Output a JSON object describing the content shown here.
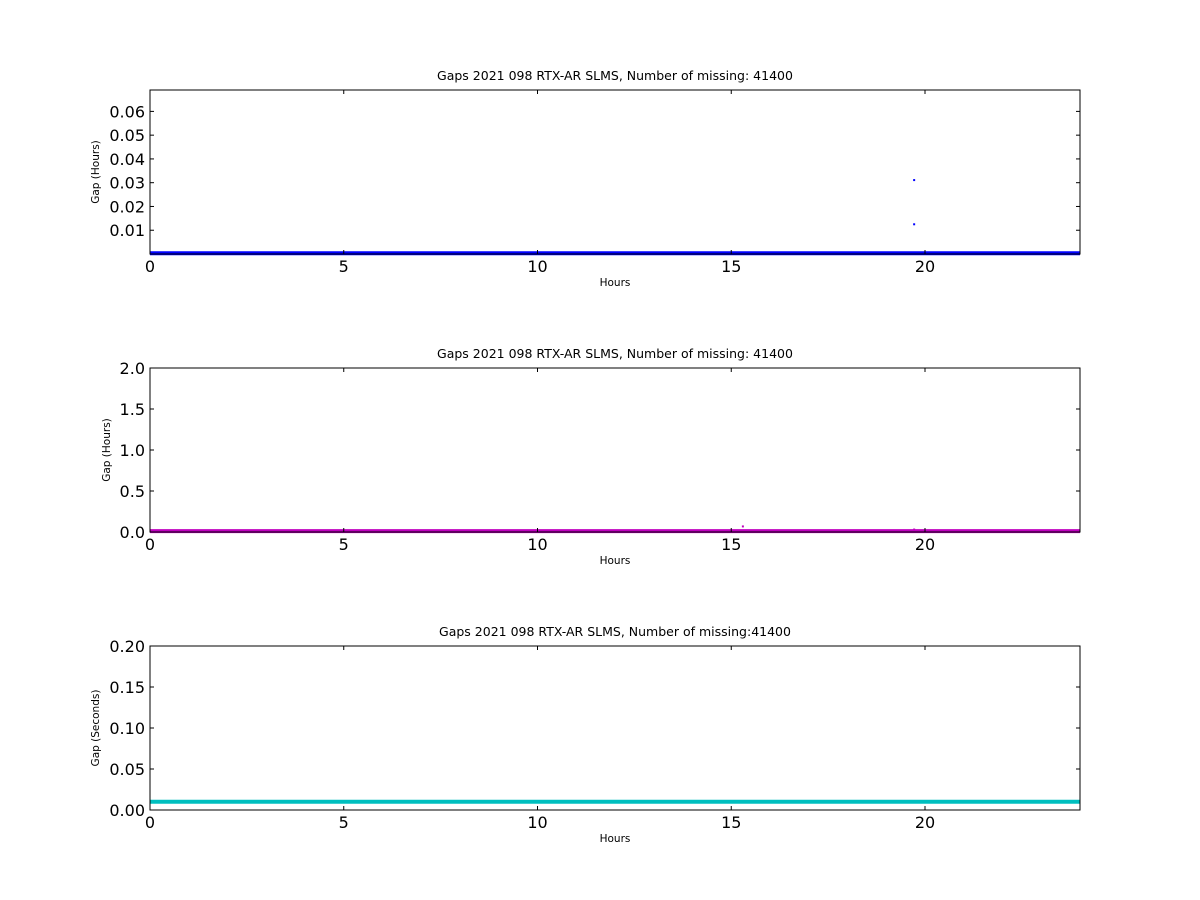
{
  "chart_data": [
    {
      "type": "scatter",
      "title": "Gaps 2021 098 RTX-AR  SLMS, Number of missing: 41400",
      "xlabel": "Hours",
      "ylabel": "Gap (Hours)",
      "xlim": [
        0,
        24
      ],
      "ylim": [
        0,
        0.069
      ],
      "xticks": [
        0,
        5,
        10,
        15,
        20
      ],
      "yticks": [
        0.01,
        0.02,
        0.03,
        0.04,
        0.05,
        0.06
      ],
      "ytick_labels": [
        "0.01",
        "0.02",
        "0.03",
        "0.04",
        "0.05",
        "0.06"
      ],
      "grid": false,
      "series": [
        {
          "color": "#0000ff",
          "baseline": {
            "value": 0.0003,
            "x_range": [
              0,
              24
            ]
          },
          "points": [
            {
              "x": 19.72,
              "y": 0.0311
            },
            {
              "x": 19.72,
              "y": 0.0125
            }
          ]
        }
      ]
    },
    {
      "type": "scatter",
      "title": "Gaps 2021 098 RTX-AR  SLMS, Number of missing: 41400",
      "xlabel": "Hours",
      "ylabel": "Gap (Hours)",
      "xlim": [
        0,
        24
      ],
      "ylim": [
        0,
        2.0
      ],
      "xticks": [
        0,
        5,
        10,
        15,
        20
      ],
      "yticks": [
        0.0,
        0.5,
        1.0,
        1.5,
        2.0
      ],
      "ytick_labels": [
        "0.0",
        "0.5",
        "1.0",
        "1.5",
        "2.0"
      ],
      "grid": false,
      "series": [
        {
          "color": "#bf00bf",
          "baseline": {
            "value": 0.01,
            "x_range": [
              0,
              24
            ]
          },
          "points": [
            {
              "x": 15.3,
              "y": 0.068
            },
            {
              "x": 19.72,
              "y": 0.03
            }
          ]
        }
      ]
    },
    {
      "type": "line",
      "title": "Gaps 2021 098 RTX-AR  SLMS, Number of missing:41400",
      "xlabel": "Hours",
      "ylabel": "Gap (Seconds)",
      "xlim": [
        0,
        24
      ],
      "ylim": [
        0,
        0.2
      ],
      "xticks": [
        0,
        5,
        10,
        15,
        20
      ],
      "yticks": [
        0.0,
        0.05,
        0.1,
        0.15,
        0.2
      ],
      "ytick_labels": [
        "0.00",
        "0.05",
        "0.10",
        "0.15",
        "0.20"
      ],
      "grid": false,
      "series": [
        {
          "color": "#00bfbf",
          "baseline": {
            "value": 0.01,
            "x_range": [
              0,
              24
            ]
          },
          "points": []
        }
      ]
    }
  ]
}
